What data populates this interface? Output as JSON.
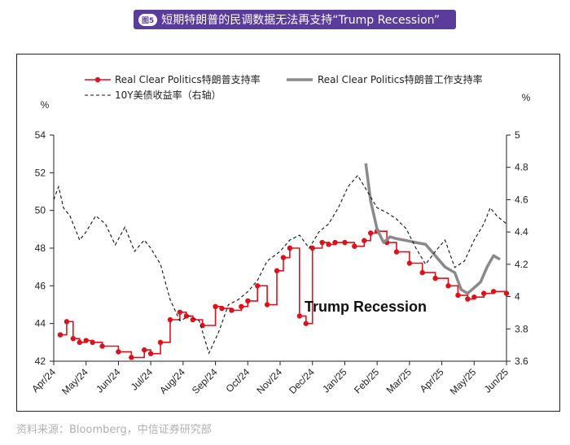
{
  "header": {
    "figure_badge": "图5",
    "title": "短期特朗普的民调数据无法再支持“Trump Recession”"
  },
  "footer": {
    "source": "资料来源：Bloomberg，中信证券研究部"
  },
  "chart_data": {
    "type": "line",
    "title": "短期特朗普的民调数据无法再支持“Trump Recession”",
    "left_axis_unit": "%",
    "right_axis_unit": "%",
    "ylim_left": [
      42,
      54
    ],
    "ylim_right": [
      3.6,
      5
    ],
    "left_ticks": [
      "54",
      "52",
      "50",
      "48",
      "46",
      "44",
      "42"
    ],
    "right_ticks": [
      "5",
      "4.8",
      "4.6",
      "4.4",
      "4.2",
      "4",
      "3.8",
      "3.6"
    ],
    "x_ticks": [
      "Apr/24",
      "May/24",
      "Jun/24",
      "Jul/24",
      "Aug/24",
      "Sep/24",
      "Oct/24",
      "Nov/24",
      "Dec/24",
      "Jan/25",
      "Feb/25",
      "Mar/25",
      "Apr/25",
      "May/25",
      "Jun/25"
    ],
    "x_units": "months since 2024-04-01",
    "annotation": "Trump Recession",
    "series": [
      {
        "name": "Real Clear Politics特朗普支持率",
        "axis": "left",
        "style": "red-line-markers",
        "color": "#e0101a",
        "x": [
          0.2,
          0.4,
          0.6,
          0.8,
          1.0,
          1.2,
          1.5,
          2.0,
          2.4,
          2.8,
          3.0,
          3.3,
          3.6,
          3.9,
          4.1,
          4.3,
          4.6,
          5.0,
          5.2,
          5.5,
          5.8,
          6.0,
          6.3,
          6.6,
          6.9,
          7.1,
          7.3,
          7.6,
          7.8,
          8.0,
          8.3,
          8.5,
          8.7,
          9.0,
          9.3,
          9.6,
          9.8,
          10.0,
          10.3,
          10.6,
          11.0,
          11.4,
          11.8,
          12.2,
          12.5,
          12.8,
          13.0,
          13.3,
          13.6,
          14.0
        ],
        "values": [
          43.4,
          44.1,
          43.2,
          43.0,
          43.1,
          43.0,
          42.8,
          42.5,
          42.2,
          42.6,
          42.4,
          43.0,
          44.2,
          44.6,
          44.4,
          44.2,
          43.9,
          44.9,
          44.8,
          44.7,
          44.9,
          45.2,
          46.0,
          45.0,
          46.8,
          47.5,
          48.0,
          44.4,
          44.0,
          48.0,
          48.3,
          48.2,
          48.3,
          48.3,
          48.1,
          48.4,
          48.8,
          48.9,
          48.3,
          47.8,
          47.2,
          46.7,
          46.4,
          46.0,
          45.5,
          45.3,
          45.4,
          45.6,
          45.7,
          45.6
        ]
      },
      {
        "name": "Real Clear Politics特朗普工作支持率",
        "axis": "left",
        "style": "gray-thick-line",
        "color": "#8a8a8a",
        "x": [
          9.65,
          9.8,
          10.0,
          10.2,
          10.4,
          10.6,
          10.9,
          11.2,
          11.5,
          11.8,
          12.1,
          12.4,
          12.6,
          12.8,
          13.0,
          13.2,
          13.4,
          13.6,
          13.8
        ],
        "values": [
          52.5,
          50.5,
          49.0,
          48.3,
          48.6,
          48.5,
          48.4,
          48.3,
          48.2,
          47.6,
          47.0,
          46.7,
          45.8,
          45.6,
          45.9,
          46.2,
          47.0,
          47.6,
          47.4
        ]
      },
      {
        "name": "10Y美债收益率（右轴）",
        "axis": "right",
        "style": "black-dashed-line",
        "color": "#111111",
        "x": [
          0.0,
          0.15,
          0.3,
          0.5,
          0.8,
          1.0,
          1.3,
          1.6,
          1.9,
          2.2,
          2.5,
          2.8,
          3.0,
          3.3,
          3.6,
          3.9,
          4.2,
          4.5,
          4.8,
          5.1,
          5.4,
          5.7,
          6.0,
          6.3,
          6.6,
          7.0,
          7.3,
          7.6,
          7.9,
          8.2,
          8.5,
          8.8,
          9.1,
          9.4,
          9.7,
          10.0,
          10.3,
          10.6,
          10.9,
          11.2,
          11.5,
          11.8,
          12.1,
          12.4,
          12.7,
          13.0,
          13.3,
          13.5,
          13.7,
          14.0
        ],
        "values": [
          4.6,
          4.68,
          4.55,
          4.5,
          4.35,
          4.4,
          4.5,
          4.45,
          4.32,
          4.43,
          4.28,
          4.35,
          4.3,
          4.2,
          3.98,
          3.85,
          3.88,
          3.85,
          3.65,
          3.78,
          3.95,
          3.98,
          4.03,
          4.1,
          4.22,
          4.28,
          4.35,
          4.38,
          4.3,
          4.4,
          4.45,
          4.55,
          4.68,
          4.75,
          4.65,
          4.55,
          4.52,
          4.48,
          4.42,
          4.3,
          4.2,
          4.28,
          4.35,
          4.18,
          4.22,
          4.35,
          4.45,
          4.55,
          4.5,
          4.45
        ]
      }
    ]
  }
}
